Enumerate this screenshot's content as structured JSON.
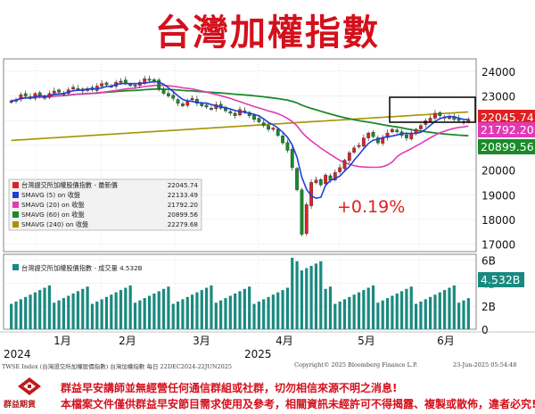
{
  "title": "台灣加權指數",
  "annotation": "+0.19%",
  "legend": {
    "items": [
      {
        "label": "台灣證交所加權股價指數 - 最新價",
        "value": "22045.74",
        "color": "#e02020"
      },
      {
        "label": "SMAVG (5)  on 收盤",
        "value": "22133.49",
        "color": "#1f3fd8"
      },
      {
        "label": "SMAVG (20)  on 收盤",
        "value": "21792.20",
        "color": "#e23ab4"
      },
      {
        "label": "SMAVG (60)  on 收盤",
        "value": "20899.56",
        "color": "#1a8a2a"
      },
      {
        "label": "SMAVG (240)  on 收盤",
        "value": "22279.68",
        "color": "#a59400"
      }
    ]
  },
  "volume_legend": {
    "label": "台灣證交所加權股價指數 - 成交量",
    "value": "4.532B"
  },
  "price_tags": [
    {
      "value": "22045.74",
      "bg": "#e02020"
    },
    {
      "value": "21792.20",
      "bg": "#e23ab4"
    },
    {
      "value": "20899.56",
      "bg": "#1a8a2a"
    }
  ],
  "volume_tag": {
    "value": "4.532B",
    "bg": "#1a8a80"
  },
  "price_axis": {
    "ticks": [
      "24000",
      "23000",
      "22000",
      "21000",
      "20000",
      "19000",
      "18000",
      "17000"
    ]
  },
  "volume_axis": {
    "ticks": [
      "6B",
      "4B",
      "2B",
      "0"
    ]
  },
  "x_axis": {
    "year_left": "2024",
    "year_mid": "2025",
    "months": [
      "1月",
      "2月",
      "3月",
      "4月",
      "5月",
      "6月"
    ]
  },
  "source_left": "TWSE Index (台灣證交所加權股價指數) 台灣加權指數   每日  22DEC2024-22JUN2025",
  "source_mid": "Copyright© 2025 Bloomberg Finance L.P.",
  "source_right": "23-Jun-2025 05:54:48",
  "footer": {
    "logo_text": "群益期貨",
    "line1": "群益早安講師並無經營任何通信群組或社群，切勿相信來源不明之消息!",
    "line2": "本檔案文件僅供群益早安節目需求使用及參考，相關資訊未經許可不得揭露、複製或散佈，違者必究!"
  },
  "chart_data": {
    "type": "candlestick",
    "x_range": [
      "2024-12-22",
      "2025-06-22"
    ],
    "y_range": [
      16700,
      24500
    ],
    "volume_range_B": [
      0,
      6.5
    ],
    "close": [
      22800,
      22850,
      23050,
      23000,
      22900,
      23100,
      23000,
      22950,
      23100,
      23200,
      23150,
      23100,
      23250,
      23350,
      23300,
      23200,
      23300,
      23250,
      23400,
      23500,
      23450,
      23400,
      23550,
      23600,
      23500,
      23450,
      23400,
      23550,
      23700,
      23650,
      23600,
      23300,
      23100,
      23000,
      22900,
      22700,
      22600,
      22800,
      22900,
      22700,
      22600,
      22550,
      22500,
      22650,
      22500,
      22400,
      22300,
      22200,
      22450,
      22350,
      22200,
      22050,
      21950,
      21800,
      21650,
      21700,
      21400,
      21100,
      20800,
      20100,
      19200,
      17400,
      18600,
      19500,
      19600,
      19400,
      19800,
      19600,
      19900,
      20100,
      20400,
      20700,
      20900,
      21000,
      21300,
      21500,
      21350,
      21100,
      21300,
      21500,
      21650,
      21550,
      21400,
      21300,
      21500,
      21650,
      21800,
      22000,
      22100,
      22300,
      22200,
      22100,
      22150,
      22050,
      22000,
      21950,
      22050
    ],
    "legend_values": {
      "last": 22045.74,
      "sma5": 22133.49,
      "sma20": 21792.2,
      "sma60": 20899.56,
      "sma240": 22279.68
    },
    "last_change_pct": 0.19
  }
}
